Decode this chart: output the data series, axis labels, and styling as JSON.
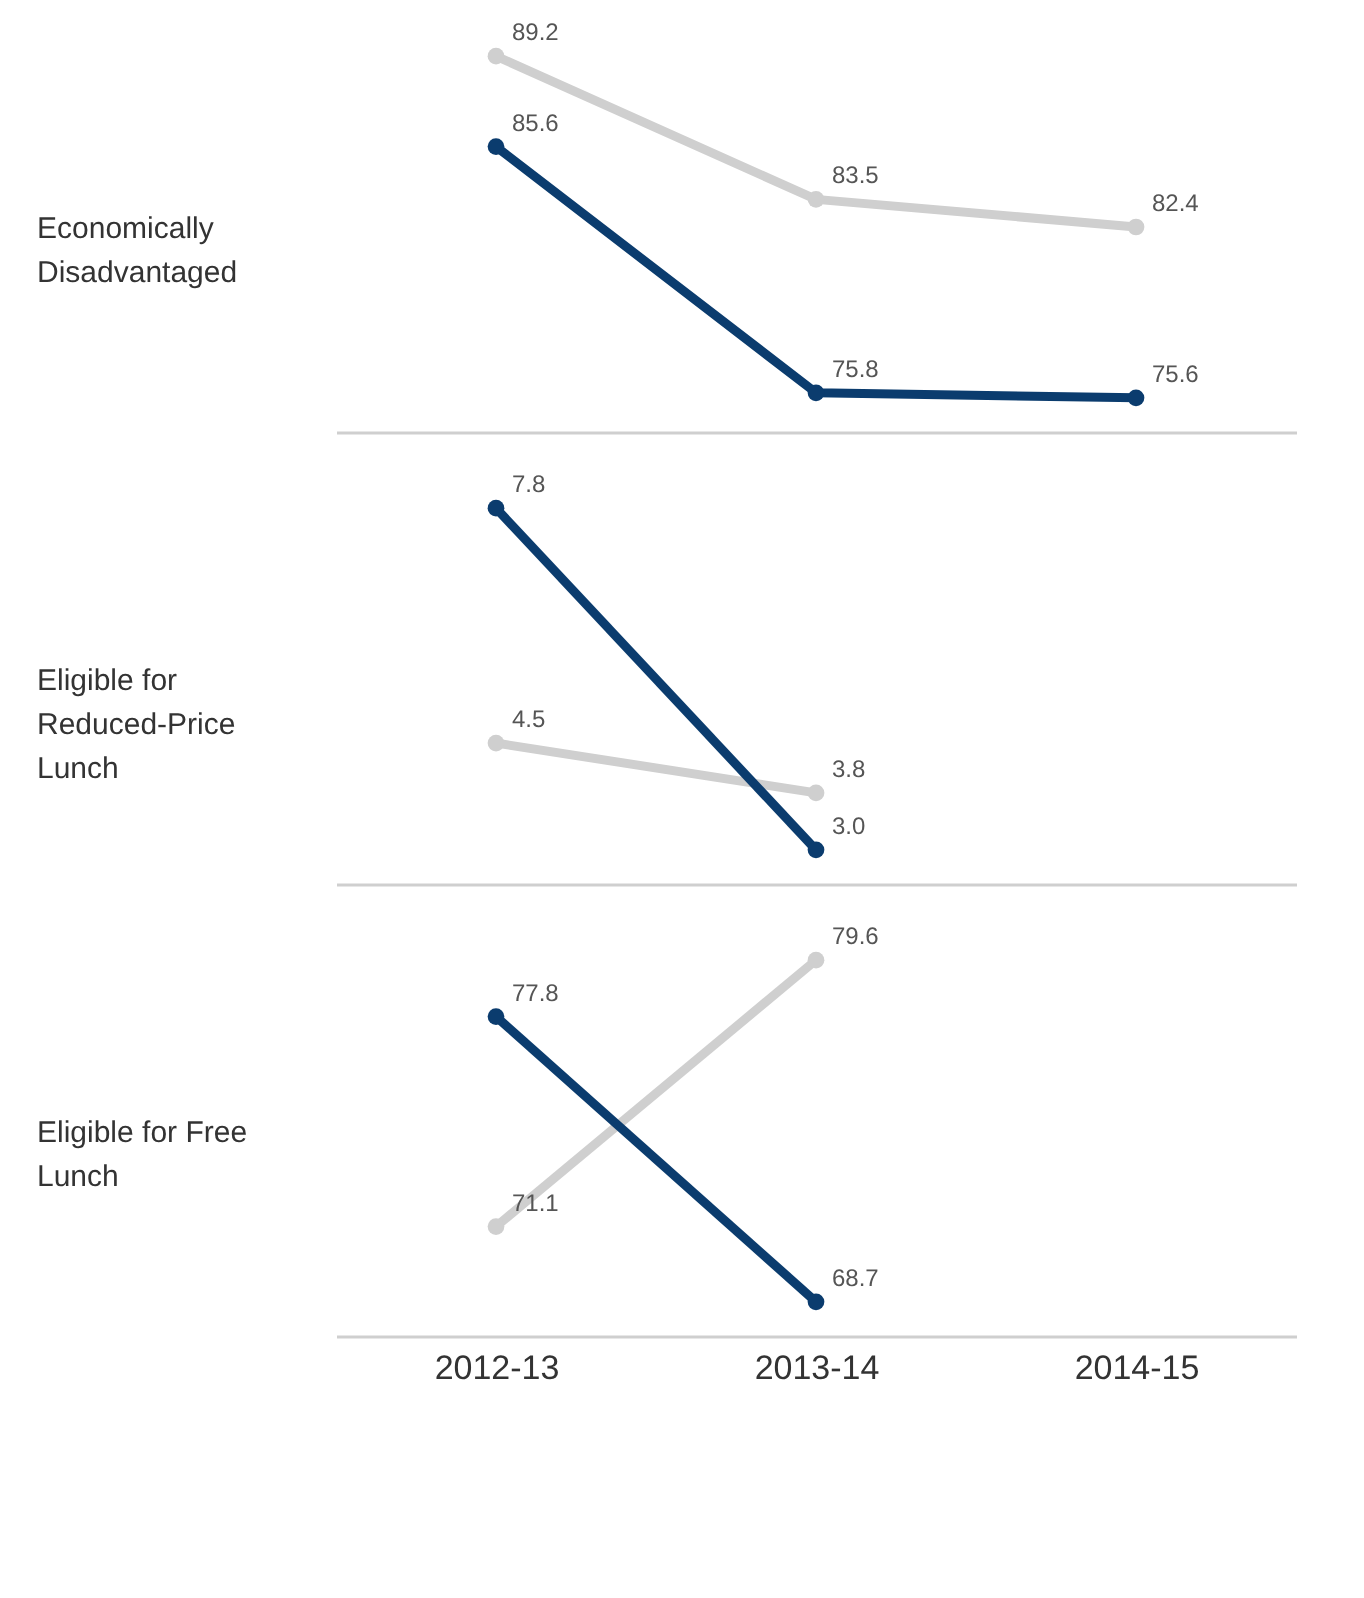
{
  "chart_data": [
    {
      "type": "line",
      "ylabel": "Economically Disadvantaged",
      "categories": [
        "2012-13",
        "2013-14",
        "2014-15"
      ],
      "series": [
        {
          "color": "#cfcfcf",
          "values": [
            89.2,
            83.5,
            82.4
          ],
          "value_labels": [
            "89.2",
            "83.5",
            "82.4"
          ]
        },
        {
          "color": "#0b3c6e",
          "values": [
            85.6,
            75.8,
            75.6
          ],
          "value_labels": [
            "85.6",
            "75.8",
            "75.6"
          ]
        }
      ],
      "marker": "circle",
      "line_style": "solid",
      "tick_labels": false
    },
    {
      "type": "line",
      "ylabel": "Eligible for Reduced-Price Lunch",
      "categories": [
        "2012-13",
        "2013-14",
        "2014-15"
      ],
      "series": [
        {
          "color": "#cfcfcf",
          "values": [
            4.5,
            3.8,
            null
          ],
          "value_labels": [
            "4.5",
            "3.8",
            null
          ]
        },
        {
          "color": "#0b3c6e",
          "values": [
            7.8,
            3.0,
            null
          ],
          "value_labels": [
            "7.8",
            "3.0",
            null
          ]
        }
      ],
      "marker": "circle",
      "line_style": "solid",
      "tick_labels": false
    },
    {
      "type": "line",
      "ylabel": "Eligible for Free Lunch",
      "categories": [
        "2012-13",
        "2013-14",
        "2014-15"
      ],
      "series": [
        {
          "color": "#cfcfcf",
          "values": [
            71.1,
            79.6,
            null
          ],
          "value_labels": [
            "71.1",
            "79.6",
            null
          ]
        },
        {
          "color": "#0b3c6e",
          "values": [
            77.8,
            68.7,
            null
          ],
          "value_labels": [
            "77.8",
            "68.7",
            null
          ]
        }
      ],
      "marker": "circle",
      "line_style": "solid",
      "tick_labels": "x"
    }
  ]
}
